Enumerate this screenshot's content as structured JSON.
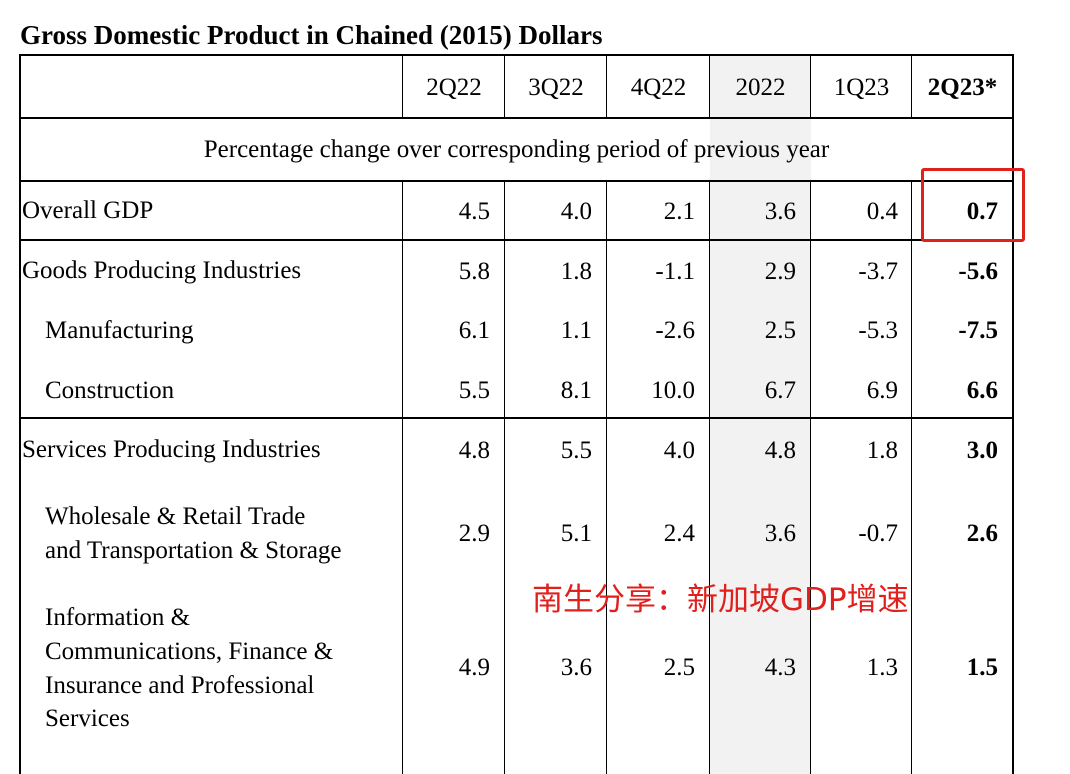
{
  "title": "Gross Domestic Product in Chained (2015) Dollars",
  "columns": [
    "2Q22",
    "3Q22",
    "4Q22",
    "2022",
    "1Q23",
    "2Q23*"
  ],
  "subheader": "Percentage change over corresponding period of previous year",
  "rows": [
    {
      "label": "Overall GDP",
      "values": [
        "4.5",
        "4.0",
        "2.1",
        "3.6",
        "0.4",
        "0.7"
      ]
    },
    {
      "label": "Goods Producing Industries",
      "values": [
        "5.8",
        "1.8",
        "-1.1",
        "2.9",
        "-3.7",
        "-5.6"
      ]
    },
    {
      "label": "Manufacturing",
      "values": [
        "6.1",
        "1.1",
        "-2.6",
        "2.5",
        "-5.3",
        "-7.5"
      ]
    },
    {
      "label": "Construction",
      "values": [
        "5.5",
        "8.1",
        "10.0",
        "6.7",
        "6.9",
        "6.6"
      ]
    },
    {
      "label": "Services Producing Industries",
      "values": [
        "4.8",
        "5.5",
        "4.0",
        "4.8",
        "1.8",
        "3.0"
      ]
    },
    {
      "label_lines": [
        "Wholesale & Retail Trade",
        "and Transportation & Storage"
      ],
      "values": [
        "2.9",
        "5.1",
        "2.4",
        "3.6",
        "-0.7",
        "2.6"
      ]
    },
    {
      "label_lines": [
        "Information &",
        "Communications, Finance &",
        "Insurance and Professional",
        "Services"
      ],
      "values": [
        "4.9",
        "3.6",
        "2.5",
        "4.3",
        "1.3",
        "1.5"
      ]
    }
  ],
  "watermark": "南生分享：新加坡GDP增速",
  "highlight_color": "#e0201c",
  "shaded_column_color": "#f2f2f2"
}
